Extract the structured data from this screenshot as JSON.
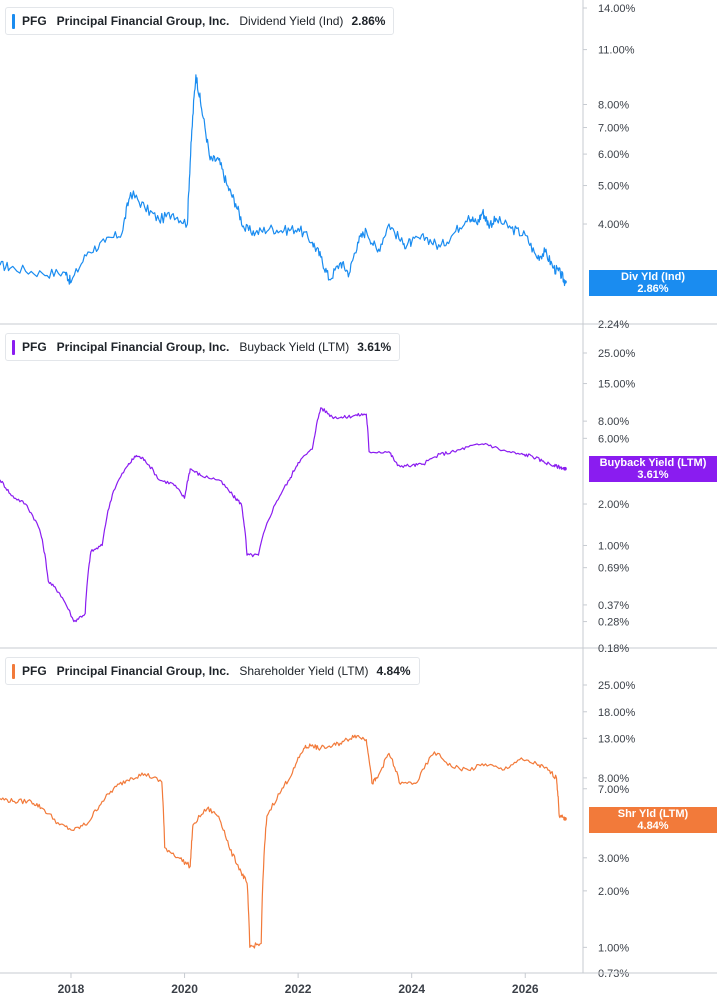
{
  "chart_data": [
    {
      "type": "line",
      "title": "PFG Principal Financial Group, Inc. Dividend Yield (Ind) 2.86%",
      "ticker": "PFG",
      "company": "Principal Financial Group, Inc.",
      "metric": "Dividend Yield (Ind)",
      "current_value": "2.86%",
      "tag_label": "Div Yld (Ind)",
      "color": "#1a8cf0",
      "scale": "log",
      "ylim": [
        2.24,
        14.0
      ],
      "yticks": [
        "14.00%",
        "11.00%",
        "8.00%",
        "7.00%",
        "6.00%",
        "5.00%",
        "4.00%",
        "2.24%"
      ],
      "x": [
        2016.75,
        2017.0,
        2017.5,
        2017.9,
        2018.0,
        2018.3,
        2018.6,
        2018.9,
        2019.05,
        2019.3,
        2019.55,
        2019.8,
        2020.05,
        2020.12,
        2020.2,
        2020.3,
        2020.45,
        2020.6,
        2020.75,
        2020.9,
        2021.05,
        2021.25,
        2021.5,
        2021.75,
        2022.0,
        2022.25,
        2022.4,
        2022.55,
        2022.75,
        2022.9,
        2023.05,
        2023.2,
        2023.4,
        2023.6,
        2023.85,
        2024.0,
        2024.25,
        2024.5,
        2024.75,
        2025.0,
        2025.15,
        2025.25,
        2025.35,
        2025.5,
        2025.75,
        2026.0,
        2026.2,
        2026.35,
        2026.5,
        2026.62,
        2026.7
      ],
      "values": [
        3.15,
        3.1,
        3.0,
        3.02,
        2.85,
        3.4,
        3.6,
        3.8,
        4.8,
        4.4,
        4.1,
        4.25,
        4.0,
        6.5,
        9.5,
        7.8,
        5.8,
        5.8,
        5.0,
        4.5,
        3.9,
        3.8,
        3.9,
        3.85,
        3.9,
        3.6,
        3.3,
        2.9,
        3.2,
        3.0,
        3.6,
        3.85,
        3.4,
        4.0,
        3.55,
        3.6,
        3.7,
        3.5,
        3.8,
        4.2,
        4.0,
        4.3,
        4.0,
        4.1,
        3.9,
        3.75,
        3.3,
        3.4,
        3.1,
        3.0,
        2.86
      ]
    },
    {
      "type": "line",
      "title": "PFG Principal Financial Group, Inc. Buyback Yield (LTM) 3.61%",
      "ticker": "PFG",
      "company": "Principal Financial Group, Inc.",
      "metric": "Buyback Yield (LTM)",
      "current_value": "3.61%",
      "tag_label": "Buyback Yield (LTM)",
      "color": "#8a1cf0",
      "scale": "log",
      "ylim": [
        0.18,
        25.0
      ],
      "yticks": [
        "25.00%",
        "15.00%",
        "8.00%",
        "6.00%",
        "2.00%",
        "1.00%",
        "0.69%",
        "0.37%",
        "0.28%",
        "0.18%"
      ],
      "x": [
        2016.75,
        2016.95,
        2017.2,
        2017.45,
        2017.6,
        2017.8,
        2018.05,
        2018.25,
        2018.35,
        2018.55,
        2018.75,
        2019.0,
        2019.15,
        2019.3,
        2019.55,
        2019.8,
        2020.0,
        2020.1,
        2020.3,
        2020.6,
        2020.85,
        2021.0,
        2021.1,
        2021.3,
        2021.6,
        2021.85,
        2022.0,
        2022.25,
        2022.4,
        2022.6,
        2022.8,
        2023.0,
        2023.2,
        2023.25,
        2023.6,
        2023.75,
        2024.0,
        2024.2,
        2024.5,
        2024.75,
        2025.0,
        2025.3,
        2025.6,
        2025.9,
        2026.1,
        2026.3,
        2026.5,
        2026.62,
        2026.7
      ],
      "values": [
        3.0,
        2.3,
        2.0,
        1.3,
        0.55,
        0.45,
        0.28,
        0.32,
        0.9,
        1.0,
        2.5,
        3.8,
        4.5,
        4.2,
        3.0,
        2.8,
        2.2,
        3.6,
        3.2,
        3.0,
        2.3,
        2.0,
        0.85,
        0.85,
        2.0,
        3.0,
        4.0,
        5.0,
        10.0,
        8.6,
        8.5,
        8.8,
        9.0,
        4.8,
        4.8,
        3.8,
        3.8,
        3.9,
        4.6,
        4.8,
        5.2,
        5.5,
        4.9,
        4.6,
        4.5,
        4.1,
        3.8,
        3.7,
        3.61
      ]
    },
    {
      "type": "line",
      "title": "PFG Principal Financial Group, Inc. Shareholder Yield (LTM) 4.84%",
      "ticker": "PFG",
      "company": "Principal Financial Group, Inc.",
      "metric": "Shareholder Yield (LTM)",
      "current_value": "4.84%",
      "tag_label": "Shr Yld (LTM)",
      "color": "#f27a3a",
      "scale": "log",
      "ylim": [
        0.73,
        25.0
      ],
      "yticks": [
        "25.00%",
        "18.00%",
        "13.00%",
        "8.00%",
        "7.00%",
        "3.00%",
        "2.00%",
        "1.00%",
        "0.73%"
      ],
      "x": [
        2016.75,
        2017.0,
        2017.3,
        2017.5,
        2017.8,
        2018.05,
        2018.3,
        2018.55,
        2018.8,
        2019.05,
        2019.3,
        2019.6,
        2019.65,
        2019.9,
        2020.1,
        2020.15,
        2020.4,
        2020.6,
        2020.8,
        2021.0,
        2021.1,
        2021.15,
        2021.35,
        2021.45,
        2021.7,
        2021.9,
        2022.1,
        2022.25,
        2022.35,
        2022.6,
        2022.8,
        2023.0,
        2023.2,
        2023.3,
        2023.4,
        2023.6,
        2023.8,
        2024.1,
        2024.4,
        2024.7,
        2025.0,
        2025.3,
        2025.6,
        2025.9,
        2026.2,
        2026.4,
        2026.55,
        2026.6,
        2026.7
      ],
      "values": [
        6.2,
        6.0,
        6.0,
        5.5,
        4.5,
        4.2,
        4.6,
        6.0,
        7.2,
        8.0,
        8.4,
        7.6,
        3.4,
        3.0,
        2.7,
        4.5,
        5.5,
        5.0,
        3.3,
        2.5,
        2.2,
        1.0,
        1.05,
        5.0,
        6.8,
        8.5,
        11.5,
        12.0,
        11.5,
        11.8,
        12.5,
        13.5,
        12.8,
        7.5,
        8.0,
        10.8,
        7.4,
        7.6,
        11.0,
        9.2,
        8.8,
        9.5,
        8.8,
        10.0,
        9.5,
        8.8,
        8.0,
        5.0,
        4.84
      ]
    }
  ],
  "x_axis": {
    "ticks": [
      "2018",
      "2020",
      "2022",
      "2024",
      "2026"
    ],
    "tick_values": [
      2018,
      2020,
      2022,
      2024,
      2026
    ],
    "range": [
      2016.75,
      2027.2
    ]
  },
  "colors": {
    "gridline": "#e1e4e8",
    "separator": "#c7cbd1",
    "text": "#3b4048"
  }
}
